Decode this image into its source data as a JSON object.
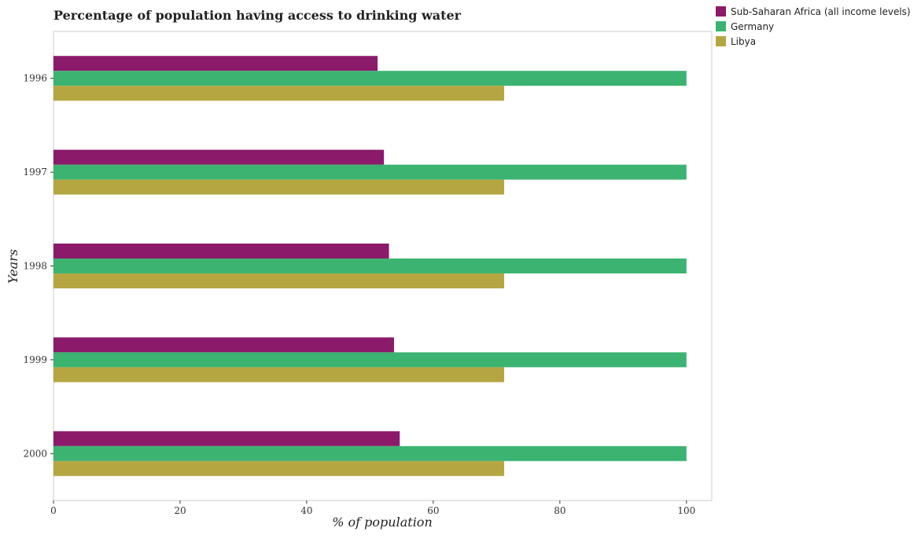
{
  "chart_data": {
    "type": "bar",
    "orientation": "horizontal",
    "title": "Percentage of population having access to drinking water",
    "xlabel": "% of population",
    "ylabel": "Years",
    "categories": [
      "1996",
      "1997",
      "1998",
      "1999",
      "2000"
    ],
    "xlim": [
      0,
      104
    ],
    "xticks": [
      0,
      20,
      40,
      60,
      80,
      100
    ],
    "xtick_labels": [
      "0",
      "20",
      "40",
      "60",
      "80",
      "100"
    ],
    "grid": false,
    "legend_position": "top-right",
    "series": [
      {
        "name": "Sub-Saharan Africa (all income levels)",
        "color": "#8b1a6b",
        "values": [
          51.2,
          52.2,
          53.0,
          53.8,
          54.7
        ]
      },
      {
        "name": "Germany",
        "color": "#3cb371",
        "values": [
          100,
          100,
          100,
          100,
          100
        ]
      },
      {
        "name": "Libya",
        "color": "#b5a642",
        "values": [
          71.2,
          71.2,
          71.2,
          71.2,
          71.2
        ]
      }
    ]
  }
}
